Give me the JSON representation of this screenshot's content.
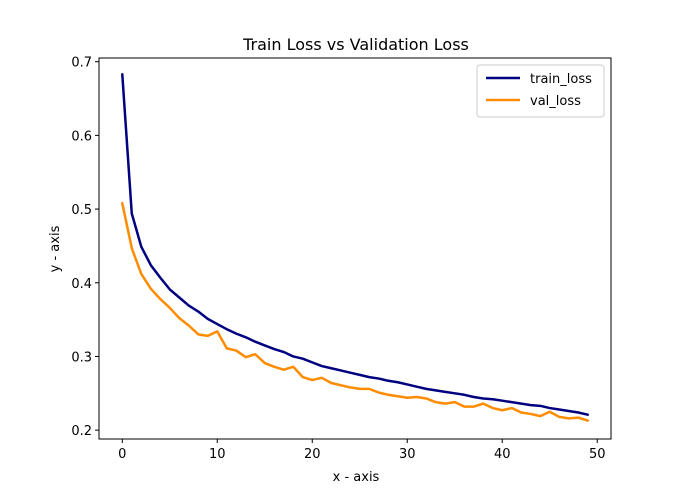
{
  "chart_data": {
    "type": "line",
    "title": "Train Loss vs Validation Loss",
    "xlabel": "x - axis",
    "ylabel": "y - axis",
    "xlim": [
      -2.45,
      51.45
    ],
    "ylim": [
      0.188,
      0.705
    ],
    "xticks": [
      0,
      10,
      20,
      30,
      40,
      50
    ],
    "yticks": [
      0.2,
      0.3,
      0.4,
      0.5,
      0.6,
      0.7
    ],
    "xtick_labels": [
      "0",
      "10",
      "20",
      "30",
      "40",
      "50"
    ],
    "ytick_labels": [
      "0.2",
      "0.3",
      "0.4",
      "0.5",
      "0.6",
      "0.7"
    ],
    "grid": false,
    "legend_position": "top-right",
    "x": [
      0,
      1,
      2,
      3,
      4,
      5,
      6,
      7,
      8,
      9,
      10,
      11,
      12,
      13,
      14,
      15,
      16,
      17,
      18,
      19,
      20,
      21,
      22,
      23,
      24,
      25,
      26,
      27,
      28,
      29,
      30,
      31,
      32,
      33,
      34,
      35,
      36,
      37,
      38,
      39,
      40,
      41,
      42,
      43,
      44,
      45,
      46,
      47,
      48,
      49
    ],
    "series": [
      {
        "name": "train_loss",
        "color": "#000080",
        "values": [
          0.683,
          0.494,
          0.449,
          0.424,
          0.407,
          0.391,
          0.38,
          0.369,
          0.361,
          0.351,
          0.344,
          0.337,
          0.331,
          0.326,
          0.32,
          0.315,
          0.31,
          0.306,
          0.3,
          0.297,
          0.292,
          0.287,
          0.284,
          0.281,
          0.278,
          0.275,
          0.272,
          0.27,
          0.267,
          0.265,
          0.262,
          0.259,
          0.256,
          0.254,
          0.252,
          0.25,
          0.248,
          0.245,
          0.243,
          0.242,
          0.24,
          0.238,
          0.236,
          0.234,
          0.233,
          0.23,
          0.228,
          0.226,
          0.224,
          0.221
        ]
      },
      {
        "name": "val_loss",
        "color": "#ff8c00",
        "values": [
          0.508,
          0.447,
          0.412,
          0.392,
          0.378,
          0.366,
          0.352,
          0.342,
          0.33,
          0.328,
          0.334,
          0.311,
          0.308,
          0.299,
          0.303,
          0.291,
          0.286,
          0.282,
          0.286,
          0.272,
          0.268,
          0.271,
          0.264,
          0.261,
          0.258,
          0.256,
          0.256,
          0.251,
          0.248,
          0.246,
          0.244,
          0.245,
          0.243,
          0.238,
          0.236,
          0.238,
          0.232,
          0.232,
          0.236,
          0.23,
          0.227,
          0.23,
          0.224,
          0.222,
          0.219,
          0.225,
          0.218,
          0.216,
          0.217,
          0.213
        ]
      }
    ]
  }
}
